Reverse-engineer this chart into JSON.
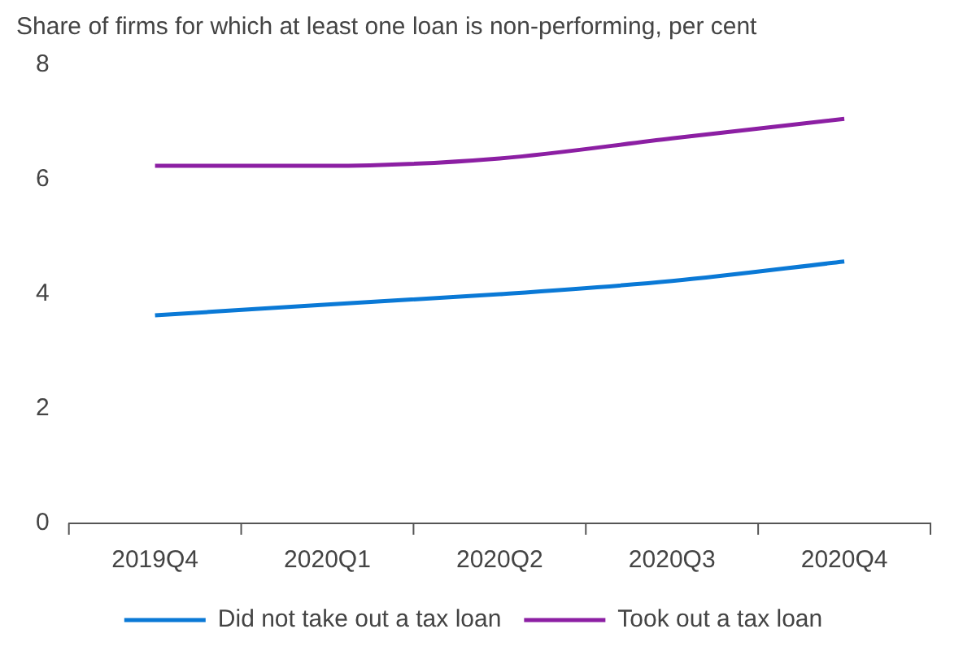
{
  "chart_data": {
    "type": "line",
    "title": "Share of firms for which at least one loan is non-performing, per cent",
    "categories": [
      "2019Q4",
      "2020Q1",
      "2020Q2",
      "2020Q3",
      "2020Q4"
    ],
    "series": [
      {
        "name": "Did not take out a tax loan",
        "color": "#0a79d6",
        "values": [
          3.63,
          3.82,
          4.0,
          4.23,
          4.57
        ]
      },
      {
        "name": "Took out a tax loan",
        "color": "#8c1fa3",
        "values": [
          6.24,
          6.24,
          6.37,
          6.72,
          7.06
        ]
      }
    ],
    "ylim": [
      0,
      8
    ],
    "yticks": [
      0,
      2,
      4,
      6,
      8
    ],
    "grid": false,
    "legend": "bottom",
    "marker": "none",
    "line_style": "solid"
  }
}
